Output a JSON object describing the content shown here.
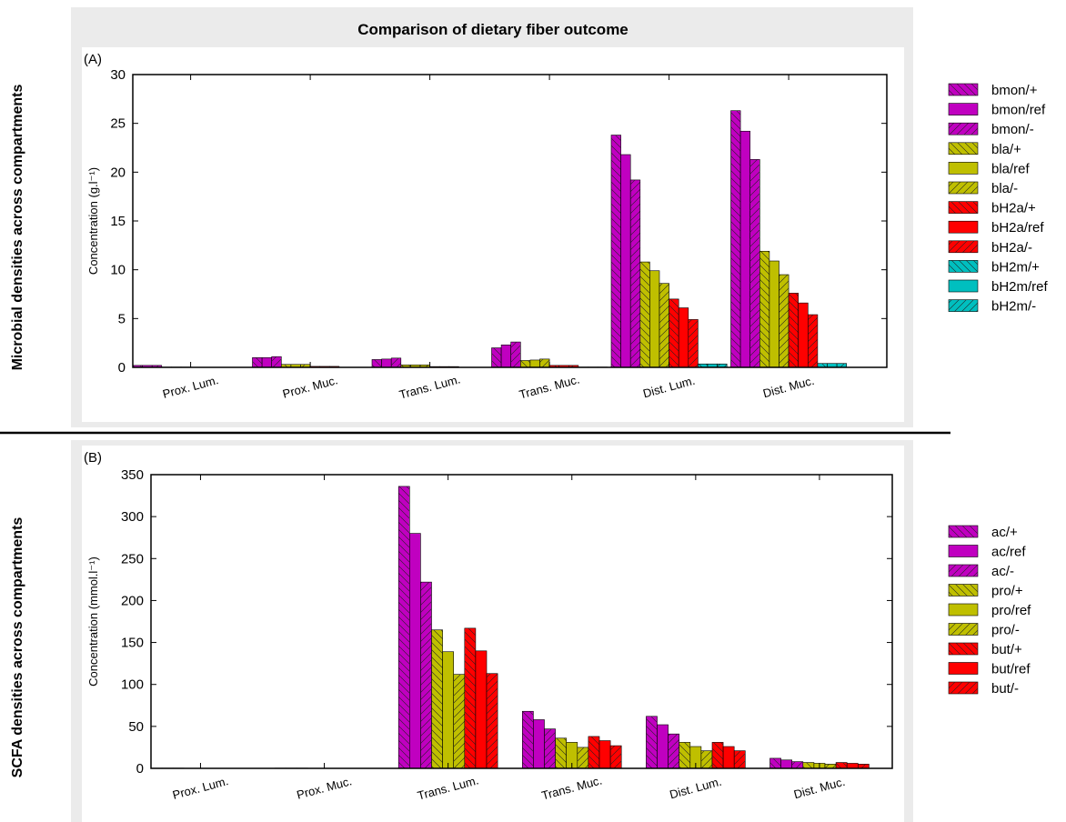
{
  "figure": {
    "title": "Comparison of dietary fiber outcome",
    "row_label_top": "Microbial densities across compartments",
    "row_label_bottom": "SCFA densities across compartments"
  },
  "chart_data": [
    {
      "panel": "(A)",
      "type": "bar",
      "ylabel": "Concentration (g.l⁻¹)",
      "ylim": [
        0,
        30
      ],
      "yticks": [
        0,
        5,
        10,
        15,
        20,
        25,
        30
      ],
      "categories": [
        "Prox. Lum.",
        "Prox. Muc.",
        "Trans. Lum.",
        "Trans. Muc.",
        "Dist. Lum.",
        "Dist. Muc."
      ],
      "legend_position": "right",
      "series": [
        {
          "name": "bmon/+",
          "color": "#c000c0",
          "hatch": "back",
          "values": [
            0.2,
            1.0,
            0.8,
            2.0,
            23.8,
            26.3
          ]
        },
        {
          "name": "bmon/ref",
          "color": "#c000c0",
          "hatch": "none",
          "values": [
            0.2,
            1.0,
            0.85,
            2.3,
            21.8,
            24.2
          ]
        },
        {
          "name": "bmon/-",
          "color": "#c000c0",
          "hatch": "fwd",
          "values": [
            0.2,
            1.1,
            0.95,
            2.6,
            19.2,
            21.3
          ]
        },
        {
          "name": "bla/+",
          "color": "#bfbf00",
          "hatch": "back",
          "values": [
            0.03,
            0.3,
            0.25,
            0.7,
            10.8,
            11.9
          ]
        },
        {
          "name": "bla/ref",
          "color": "#bfbf00",
          "hatch": "none",
          "values": [
            0.03,
            0.3,
            0.25,
            0.75,
            9.9,
            10.9
          ]
        },
        {
          "name": "bla/-",
          "color": "#bfbf00",
          "hatch": "fwd",
          "values": [
            0.03,
            0.3,
            0.25,
            0.85,
            8.6,
            9.5
          ]
        },
        {
          "name": "bH2a/+",
          "color": "#ff0000",
          "hatch": "back",
          "values": [
            0.01,
            0.1,
            0.08,
            0.2,
            7.0,
            7.6
          ]
        },
        {
          "name": "bH2a/ref",
          "color": "#ff0000",
          "hatch": "none",
          "values": [
            0.01,
            0.1,
            0.08,
            0.2,
            6.1,
            6.6
          ]
        },
        {
          "name": "bH2a/-",
          "color": "#ff0000",
          "hatch": "fwd",
          "values": [
            0.01,
            0.1,
            0.08,
            0.2,
            4.9,
            5.4
          ]
        },
        {
          "name": "bH2m/+",
          "color": "#00bfbf",
          "hatch": "back",
          "values": [
            0.0,
            0.02,
            0.01,
            0.03,
            0.35,
            0.4
          ]
        },
        {
          "name": "bH2m/ref",
          "color": "#00bfbf",
          "hatch": "none",
          "values": [
            0.0,
            0.02,
            0.01,
            0.03,
            0.35,
            0.4
          ]
        },
        {
          "name": "bH2m/-",
          "color": "#00bfbf",
          "hatch": "fwd",
          "values": [
            0.0,
            0.02,
            0.01,
            0.03,
            0.35,
            0.4
          ]
        }
      ]
    },
    {
      "panel": "(B)",
      "type": "bar",
      "ylabel": "Concentration (mmol.l⁻¹)",
      "ylim": [
        0,
        350
      ],
      "yticks": [
        0,
        50,
        100,
        150,
        200,
        250,
        300,
        350
      ],
      "categories": [
        "Prox. Lum.",
        "Prox. Muc.",
        "Trans. Lum.",
        "Trans. Muc.",
        "Dist. Lum.",
        "Dist. Muc."
      ],
      "legend_position": "right",
      "series": [
        {
          "name": "ac/+",
          "color": "#c000c0",
          "hatch": "back",
          "values": [
            0.3,
            0.3,
            336,
            68,
            62,
            12
          ]
        },
        {
          "name": "ac/ref",
          "color": "#c000c0",
          "hatch": "none",
          "values": [
            0.3,
            0.3,
            280,
            58,
            52,
            10
          ]
        },
        {
          "name": "ac/-",
          "color": "#c000c0",
          "hatch": "fwd",
          "values": [
            0.3,
            0.3,
            222,
            47,
            41,
            8
          ]
        },
        {
          "name": "pro/+",
          "color": "#bfbf00",
          "hatch": "back",
          "values": [
            0.2,
            0.2,
            165,
            36,
            31,
            7
          ]
        },
        {
          "name": "pro/ref",
          "color": "#bfbf00",
          "hatch": "none",
          "values": [
            0.2,
            0.2,
            139,
            31,
            26,
            6
          ]
        },
        {
          "name": "pro/-",
          "color": "#bfbf00",
          "hatch": "fwd",
          "values": [
            0.2,
            0.2,
            112,
            25,
            21,
            5
          ]
        },
        {
          "name": "but/+",
          "color": "#ff0000",
          "hatch": "back",
          "values": [
            0.2,
            0.2,
            167,
            38,
            31,
            7
          ]
        },
        {
          "name": "but/ref",
          "color": "#ff0000",
          "hatch": "none",
          "values": [
            0.2,
            0.2,
            140,
            33,
            26,
            6
          ]
        },
        {
          "name": "but/-",
          "color": "#ff0000",
          "hatch": "fwd",
          "values": [
            0.2,
            0.2,
            113,
            27,
            21,
            5
          ]
        }
      ]
    }
  ]
}
